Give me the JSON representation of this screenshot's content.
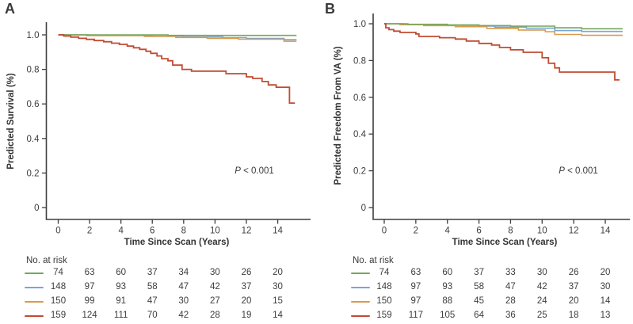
{
  "colors": {
    "green": "#74a75d",
    "blue": "#7ba4d6",
    "orange": "#d89c4f",
    "red": "#c14b33",
    "axis": "#3f3f3f",
    "text": "#3a3a3a"
  },
  "figure": {
    "panels": [
      {
        "panel_label": "A",
        "y_axis_label": "Predicted Survival (%)",
        "x_axis_label": "Time Since Scan (Years)",
        "p_prefix": "P",
        "p_suffix": " < 0.001"
      },
      {
        "panel_label": "B",
        "y_axis_label": "Predicted Freedom From VA (%)",
        "x_axis_label": "Time Since Scan (Years)",
        "p_prefix": "P",
        "p_suffix": " < 0.001"
      }
    ]
  },
  "chart_data": [
    {
      "type": "line",
      "subtype": "kaplan-meier-step",
      "panel": "A",
      "title": "",
      "xlabel": "Time Since Scan (Years)",
      "ylabel": "Predicted Survival (%)",
      "xlim": [
        0,
        15.5
      ],
      "ylim": [
        0,
        1.05
      ],
      "x_ticks": [
        0,
        2,
        4,
        6,
        8,
        10,
        12,
        14
      ],
      "y_ticks": [
        1.0,
        0.8,
        0.6,
        0.4,
        0.2,
        0
      ],
      "y_tick_labels": [
        "1.0",
        "0.8",
        "0.6",
        "0.4",
        "0.2",
        "0"
      ],
      "grid": false,
      "legend": "none",
      "annotation": "P < 0.001",
      "series": [
        {
          "color": "green",
          "baseline_n": 74,
          "steps": [
            [
              0,
              1
            ],
            [
              7.0,
              1
            ],
            [
              7.0,
              0.997
            ],
            [
              15.2,
              0.997
            ]
          ]
        },
        {
          "color": "blue",
          "baseline_n": 148,
          "steps": [
            [
              0,
              1
            ],
            [
              2.0,
              1
            ],
            [
              2.0,
              0.997
            ],
            [
              6.0,
              0.997
            ],
            [
              6.0,
              0.993
            ],
            [
              8.0,
              0.993
            ],
            [
              8.0,
              0.988
            ],
            [
              10.5,
              0.988
            ],
            [
              10.5,
              0.984
            ],
            [
              12.0,
              0.984
            ],
            [
              12.0,
              0.979
            ],
            [
              14.4,
              0.979
            ],
            [
              14.4,
              0.972
            ],
            [
              15.2,
              0.972
            ]
          ]
        },
        {
          "color": "orange",
          "baseline_n": 150,
          "steps": [
            [
              0,
              1
            ],
            [
              1.8,
              1
            ],
            [
              1.8,
              0.996
            ],
            [
              5.5,
              0.996
            ],
            [
              5.5,
              0.991
            ],
            [
              7.5,
              0.991
            ],
            [
              7.5,
              0.985
            ],
            [
              9.5,
              0.985
            ],
            [
              9.5,
              0.98
            ],
            [
              11.5,
              0.98
            ],
            [
              11.5,
              0.975
            ],
            [
              14.4,
              0.975
            ],
            [
              14.4,
              0.963
            ],
            [
              15.2,
              0.963
            ]
          ]
        },
        {
          "color": "red",
          "baseline_n": 159,
          "steps": [
            [
              0,
              1
            ],
            [
              0.35,
              1
            ],
            [
              0.35,
              0.993
            ],
            [
              0.8,
              0.993
            ],
            [
              0.8,
              0.987
            ],
            [
              1.3,
              0.987
            ],
            [
              1.3,
              0.98
            ],
            [
              1.8,
              0.98
            ],
            [
              1.8,
              0.974
            ],
            [
              2.3,
              0.974
            ],
            [
              2.3,
              0.967
            ],
            [
              2.9,
              0.967
            ],
            [
              2.9,
              0.96
            ],
            [
              3.4,
              0.96
            ],
            [
              3.4,
              0.952
            ],
            [
              3.9,
              0.952
            ],
            [
              3.9,
              0.945
            ],
            [
              4.4,
              0.945
            ],
            [
              4.4,
              0.935
            ],
            [
              4.8,
              0.935
            ],
            [
              4.8,
              0.925
            ],
            [
              5.2,
              0.925
            ],
            [
              5.2,
              0.916
            ],
            [
              5.6,
              0.916
            ],
            [
              5.6,
              0.905
            ],
            [
              5.9,
              0.905
            ],
            [
              5.9,
              0.893
            ],
            [
              6.3,
              0.893
            ],
            [
              6.3,
              0.878
            ],
            [
              6.6,
              0.878
            ],
            [
              6.6,
              0.862
            ],
            [
              7.0,
              0.862
            ],
            [
              7.0,
              0.85
            ],
            [
              7.3,
              0.85
            ],
            [
              7.3,
              0.825
            ],
            [
              7.9,
              0.825
            ],
            [
              7.9,
              0.8
            ],
            [
              8.5,
              0.8
            ],
            [
              8.5,
              0.79
            ],
            [
              10.7,
              0.79
            ],
            [
              10.7,
              0.775
            ],
            [
              12.0,
              0.775
            ],
            [
              12.0,
              0.757
            ],
            [
              12.4,
              0.757
            ],
            [
              12.4,
              0.748
            ],
            [
              13.0,
              0.748
            ],
            [
              13.0,
              0.73
            ],
            [
              13.4,
              0.73
            ],
            [
              13.4,
              0.71
            ],
            [
              13.9,
              0.71
            ],
            [
              13.9,
              0.697
            ],
            [
              14.75,
              0.697
            ],
            [
              14.75,
              0.605
            ],
            [
              15.1,
              0.605
            ]
          ]
        }
      ],
      "at_risk": {
        "title": "No. at risk",
        "time_points": [
          0,
          2,
          4,
          6,
          8,
          10,
          12,
          14
        ],
        "rows": [
          {
            "color": "green",
            "counts": [
              74,
              63,
              60,
              37,
              34,
              30,
              26,
              20
            ]
          },
          {
            "color": "blue",
            "counts": [
              148,
              97,
              93,
              58,
              47,
              42,
              37,
              30
            ]
          },
          {
            "color": "orange",
            "counts": [
              150,
              99,
              91,
              47,
              30,
              27,
              20,
              15
            ]
          },
          {
            "color": "red",
            "counts": [
              159,
              124,
              111,
              70,
              42,
              28,
              19,
              14
            ]
          }
        ]
      }
    },
    {
      "type": "line",
      "subtype": "kaplan-meier-step",
      "panel": "B",
      "title": "",
      "xlabel": "Time Since Scan (Years)",
      "ylabel": "Predicted Freedom From VA (%)",
      "xlim": [
        0,
        15.5
      ],
      "ylim": [
        0,
        1.05
      ],
      "x_ticks": [
        0,
        2,
        4,
        6,
        8,
        10,
        12,
        14
      ],
      "y_ticks": [
        1.0,
        0.8,
        0.6,
        0.4,
        0.2,
        0
      ],
      "y_tick_labels": [
        "1.0",
        "0.8",
        "0.6",
        "0.4",
        "0.2",
        "0"
      ],
      "grid": false,
      "legend": "none",
      "annotation": "P < 0.001",
      "series": [
        {
          "color": "green",
          "baseline_n": 74,
          "steps": [
            [
              0,
              1
            ],
            [
              1.5,
              1
            ],
            [
              1.5,
              0.997
            ],
            [
              4.0,
              0.997
            ],
            [
              4.0,
              0.994
            ],
            [
              6.0,
              0.994
            ],
            [
              6.0,
              0.99
            ],
            [
              8.0,
              0.99
            ],
            [
              8.0,
              0.987
            ],
            [
              10.8,
              0.987
            ],
            [
              10.8,
              0.978
            ],
            [
              12.5,
              0.978
            ],
            [
              12.5,
              0.973
            ],
            [
              15.1,
              0.973
            ]
          ]
        },
        {
          "color": "blue",
          "baseline_n": 148,
          "steps": [
            [
              0,
              1
            ],
            [
              1.2,
              1
            ],
            [
              1.2,
              0.996
            ],
            [
              3.0,
              0.996
            ],
            [
              3.0,
              0.992
            ],
            [
              5.0,
              0.992
            ],
            [
              5.0,
              0.987
            ],
            [
              7.0,
              0.987
            ],
            [
              7.0,
              0.982
            ],
            [
              9.0,
              0.982
            ],
            [
              9.0,
              0.976
            ],
            [
              10.8,
              0.976
            ],
            [
              10.8,
              0.963
            ],
            [
              12.5,
              0.963
            ],
            [
              12.5,
              0.958
            ],
            [
              15.1,
              0.958
            ]
          ]
        },
        {
          "color": "orange",
          "baseline_n": 150,
          "steps": [
            [
              0,
              1
            ],
            [
              1.0,
              1
            ],
            [
              1.0,
              0.995
            ],
            [
              2.5,
              0.995
            ],
            [
              2.5,
              0.99
            ],
            [
              4.5,
              0.99
            ],
            [
              4.5,
              0.984
            ],
            [
              6.5,
              0.984
            ],
            [
              6.5,
              0.975
            ],
            [
              8.5,
              0.975
            ],
            [
              8.5,
              0.966
            ],
            [
              10.2,
              0.966
            ],
            [
              10.2,
              0.957
            ],
            [
              10.8,
              0.957
            ],
            [
              10.8,
              0.942
            ],
            [
              12.5,
              0.942
            ],
            [
              12.5,
              0.937
            ],
            [
              15.1,
              0.937
            ]
          ]
        },
        {
          "color": "red",
          "baseline_n": 159,
          "steps": [
            [
              0,
              1
            ],
            [
              0.1,
              1
            ],
            [
              0.1,
              0.978
            ],
            [
              0.3,
              0.978
            ],
            [
              0.3,
              0.968
            ],
            [
              0.6,
              0.968
            ],
            [
              0.6,
              0.96
            ],
            [
              1.0,
              0.96
            ],
            [
              1.0,
              0.953
            ],
            [
              2.0,
              0.953
            ],
            [
              2.0,
              0.945
            ],
            [
              2.2,
              0.945
            ],
            [
              2.2,
              0.931
            ],
            [
              3.5,
              0.931
            ],
            [
              3.5,
              0.924
            ],
            [
              4.5,
              0.924
            ],
            [
              4.5,
              0.917
            ],
            [
              5.2,
              0.917
            ],
            [
              5.2,
              0.906
            ],
            [
              6.0,
              0.906
            ],
            [
              6.0,
              0.893
            ],
            [
              6.8,
              0.893
            ],
            [
              6.8,
              0.884
            ],
            [
              7.3,
              0.884
            ],
            [
              7.3,
              0.871
            ],
            [
              8.0,
              0.871
            ],
            [
              8.0,
              0.858
            ],
            [
              8.8,
              0.858
            ],
            [
              8.8,
              0.845
            ],
            [
              10.0,
              0.845
            ],
            [
              10.0,
              0.815
            ],
            [
              10.4,
              0.815
            ],
            [
              10.4,
              0.785
            ],
            [
              10.8,
              0.785
            ],
            [
              10.8,
              0.76
            ],
            [
              11.1,
              0.76
            ],
            [
              11.1,
              0.737
            ],
            [
              11.5,
              0.737
            ],
            [
              14.6,
              0.737
            ],
            [
              14.6,
              0.695
            ],
            [
              14.9,
              0.695
            ]
          ]
        }
      ],
      "at_risk": {
        "title": "No. at risk",
        "time_points": [
          0,
          2,
          4,
          6,
          8,
          10,
          12,
          14
        ],
        "rows": [
          {
            "color": "green",
            "counts": [
              74,
              63,
              60,
              37,
              33,
              30,
              26,
              20
            ]
          },
          {
            "color": "blue",
            "counts": [
              148,
              97,
              93,
              58,
              47,
              42,
              37,
              30
            ]
          },
          {
            "color": "orange",
            "counts": [
              150,
              97,
              88,
              45,
              28,
              24,
              20,
              14
            ]
          },
          {
            "color": "red",
            "counts": [
              159,
              117,
              105,
              64,
              36,
              25,
              18,
              13
            ]
          }
        ]
      }
    }
  ]
}
